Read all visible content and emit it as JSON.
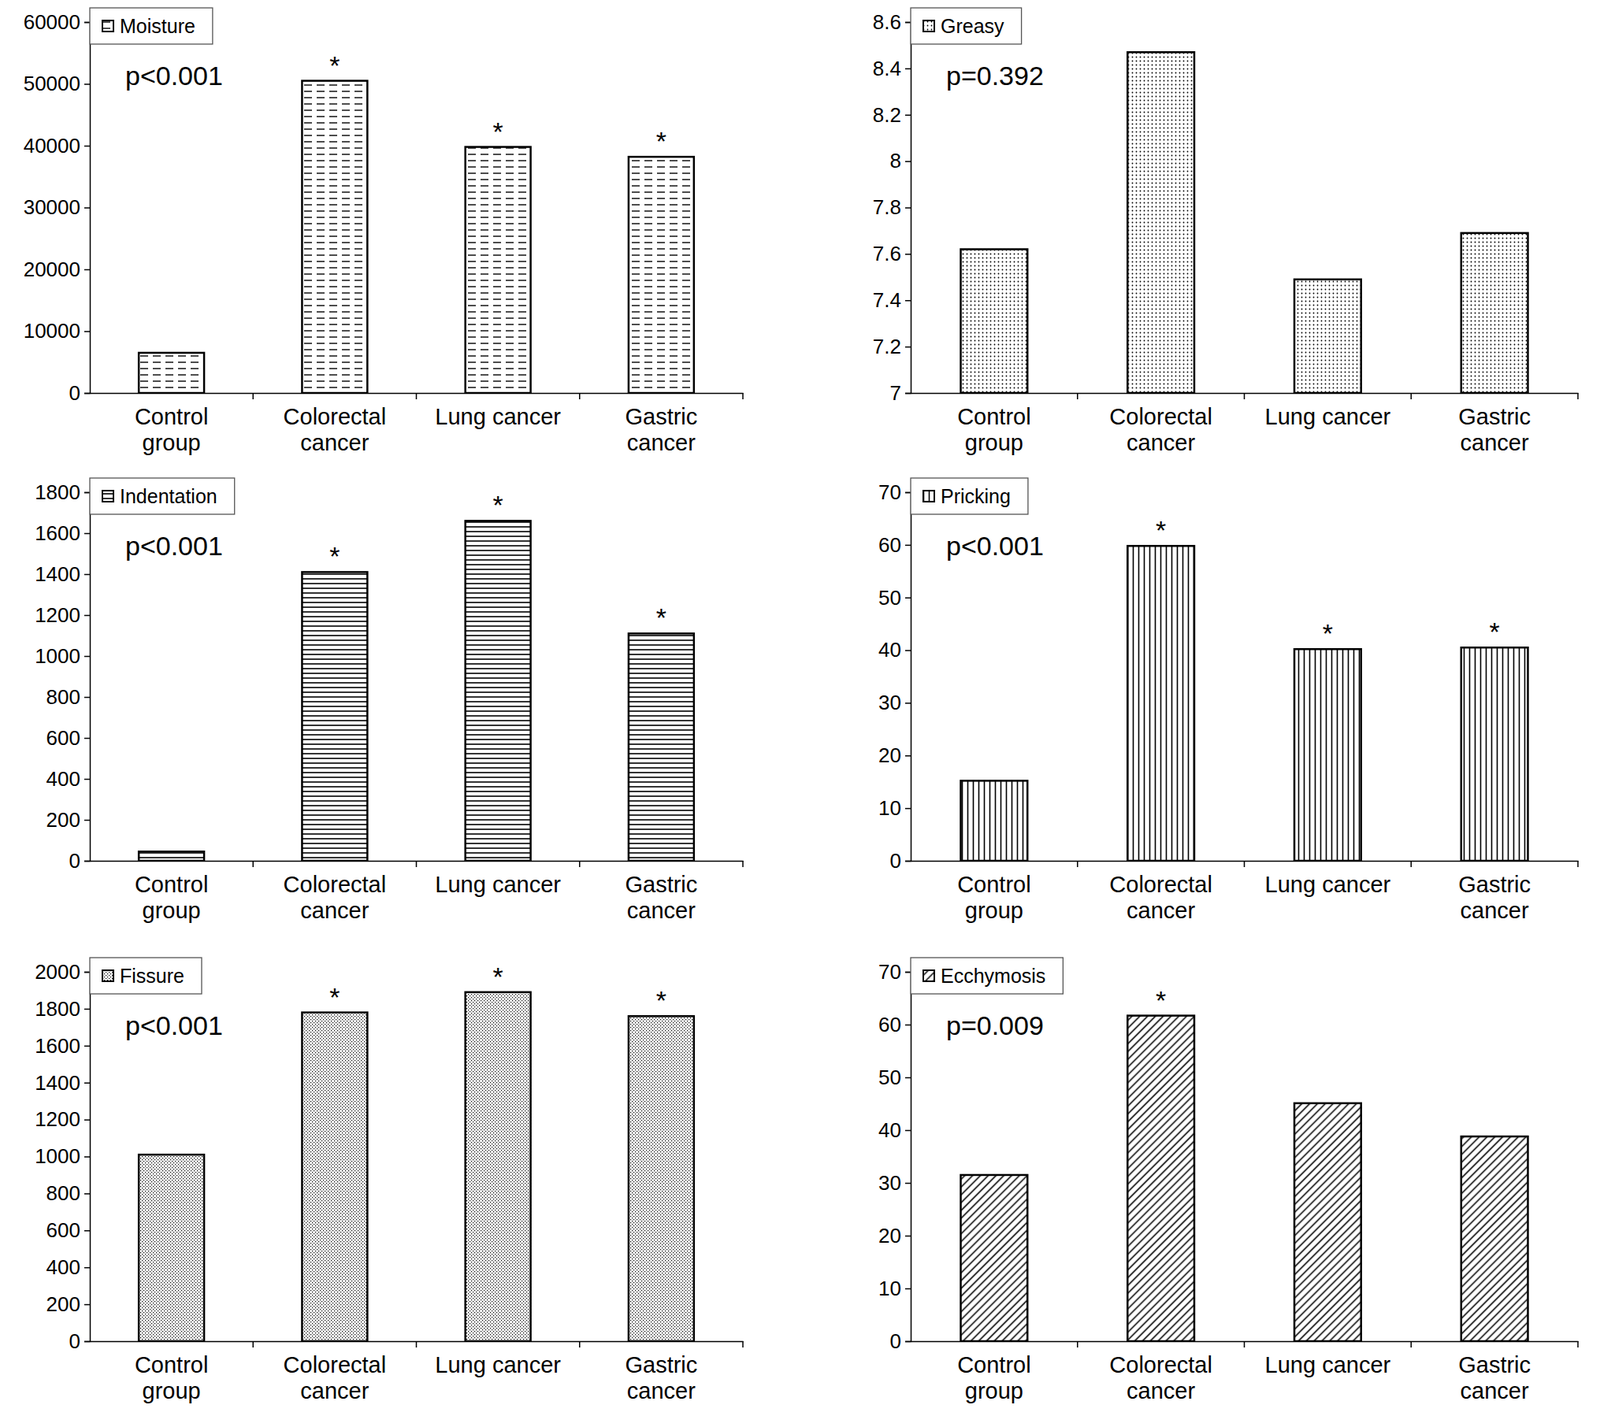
{
  "chart_data": [
    {
      "type": "bar",
      "categories": [
        "Control\ngroup",
        "Colorectal\ncancer",
        "Lung cancer",
        "Gastric\ncancer"
      ],
      "series": [
        {
          "name": "Moisture",
          "color": "#000000",
          "values": [
            6500,
            50500,
            39800,
            38200
          ]
        }
      ],
      "ylim": [
        0,
        60000
      ],
      "yticks": [
        0,
        10000,
        20000,
        30000,
        40000,
        50000,
        60000
      ],
      "legend": "upper left",
      "annotations": [
        {
          "text": "p<0.001"
        },
        {
          "text": "*",
          "category": "Colorectal\ncancer"
        },
        {
          "text": "*",
          "category": "Lung cancer"
        },
        {
          "text": "*",
          "category": "Gastric\ncancer"
        }
      ]
    },
    {
      "type": "bar",
      "categories": [
        "Control\ngroup",
        "Colorectal\ncancer",
        "Lung cancer",
        "Gastric\ncancer"
      ],
      "series": [
        {
          "name": "Greasy",
          "color": "#000000",
          "values": [
            7.62,
            8.47,
            7.49,
            7.69
          ]
        }
      ],
      "ylim": [
        7,
        8.6
      ],
      "yticks": [
        7,
        7.2,
        7.4,
        7.6,
        7.8,
        8,
        8.2,
        8.4,
        8.6
      ],
      "legend": "upper left",
      "annotations": [
        {
          "text": "p=0.392"
        }
      ]
    },
    {
      "type": "bar",
      "categories": [
        "Control\ngroup",
        "Colorectal\ncancer",
        "Lung cancer",
        "Gastric\ncancer"
      ],
      "series": [
        {
          "name": "Indentation",
          "color": "#000000",
          "values": [
            45,
            1410,
            1660,
            1110
          ]
        }
      ],
      "ylim": [
        0,
        1800
      ],
      "yticks": [
        0,
        200,
        400,
        600,
        800,
        1000,
        1200,
        1400,
        1600,
        1800
      ],
      "legend": "upper left",
      "annotations": [
        {
          "text": "p<0.001"
        },
        {
          "text": "*",
          "category": "Colorectal\ncancer"
        },
        {
          "text": "*",
          "category": "Lung cancer"
        },
        {
          "text": "*",
          "category": "Gastric\ncancer"
        }
      ]
    },
    {
      "type": "bar",
      "categories": [
        "Control\ngroup",
        "Colorectal\ncancer",
        "Lung cancer",
        "Gastric\ncancer"
      ],
      "series": [
        {
          "name": "Pricking",
          "color": "#000000",
          "values": [
            15.2,
            59.8,
            40.2,
            40.5
          ]
        }
      ],
      "ylim": [
        0,
        70
      ],
      "yticks": [
        0,
        10,
        20,
        30,
        40,
        50,
        60,
        70
      ],
      "legend": "upper left",
      "annotations": [
        {
          "text": "p<0.001"
        },
        {
          "text": "*",
          "category": "Colorectal\ncancer"
        },
        {
          "text": "*",
          "category": "Lung cancer"
        },
        {
          "text": "*",
          "category": "Gastric\ncancer"
        }
      ]
    },
    {
      "type": "bar",
      "categories": [
        "Control\ngroup",
        "Colorectal\ncancer",
        "Lung cancer",
        "Gastric\ncancer"
      ],
      "series": [
        {
          "name": "Fissure",
          "color": "#000000",
          "values": [
            1010,
            1780,
            1890,
            1760
          ]
        }
      ],
      "ylim": [
        0,
        2000
      ],
      "yticks": [
        0,
        200,
        400,
        600,
        800,
        1000,
        1200,
        1400,
        1600,
        1800,
        2000
      ],
      "legend": "upper left",
      "annotations": [
        {
          "text": "p<0.001"
        },
        {
          "text": "*",
          "category": "Colorectal\ncancer"
        },
        {
          "text": "*",
          "category": "Lung cancer"
        },
        {
          "text": "*",
          "category": "Gastric\ncancer"
        }
      ]
    },
    {
      "type": "bar",
      "categories": [
        "Control\ngroup",
        "Colorectal\ncancer",
        "Lung cancer",
        "Gastric\ncancer"
      ],
      "series": [
        {
          "name": "Ecchymosis",
          "color": "#000000",
          "values": [
            31.5,
            61.7,
            45.1,
            38.8
          ]
        }
      ],
      "ylim": [
        0,
        70
      ],
      "yticks": [
        0,
        10,
        20,
        30,
        40,
        50,
        60,
        70
      ],
      "legend": "upper left",
      "annotations": [
        {
          "text": "p=0.009"
        },
        {
          "text": "*",
          "category": "Colorectal\ncancer"
        }
      ]
    }
  ]
}
